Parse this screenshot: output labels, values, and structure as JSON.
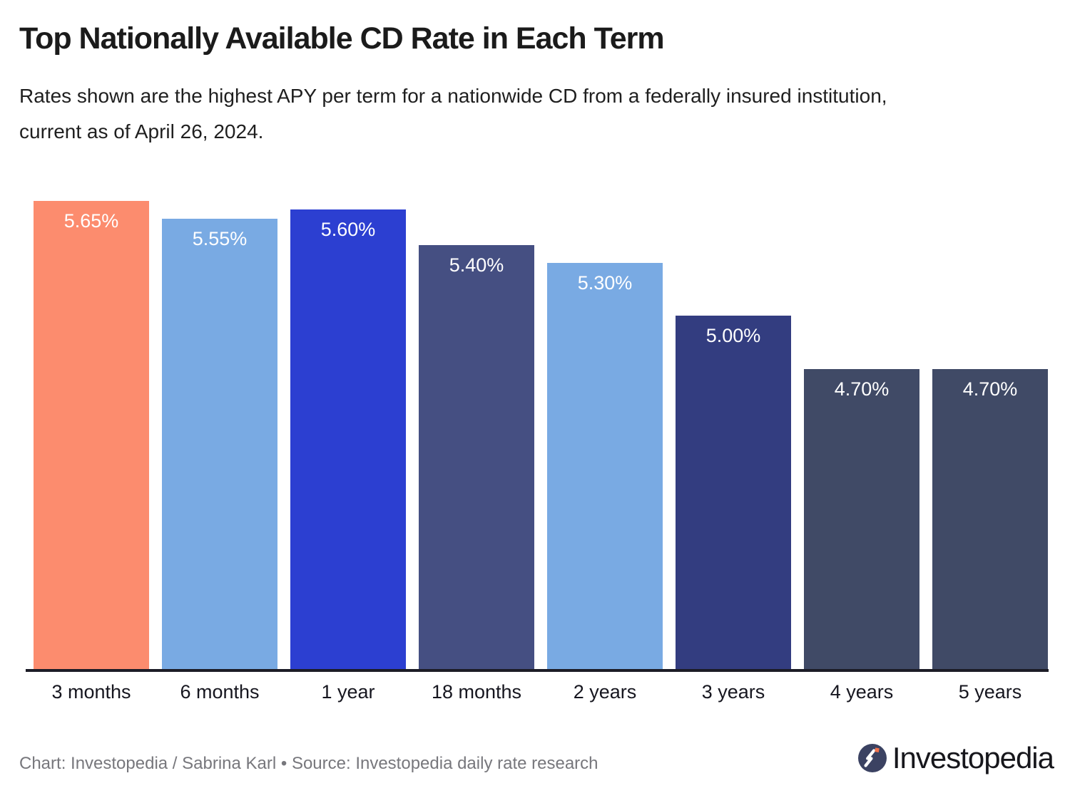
{
  "header": {
    "title": "Top Nationally Available CD Rate in Each Term",
    "subtitle_line1": "Rates shown are the highest APY per term for a nationwide CD from a federally insured institution,",
    "subtitle_line2": "current as of April 26, 2024."
  },
  "chart_data": {
    "type": "bar",
    "title": "Top Nationally Available CD Rate in Each Term",
    "xlabel": "",
    "ylabel": "",
    "categories": [
      "3 months",
      "6 months",
      "1 year",
      "18 months",
      "2 years",
      "3 years",
      "4 years",
      "5 years"
    ],
    "values": [
      5.65,
      5.55,
      5.6,
      5.4,
      5.3,
      5.0,
      4.7,
      4.7
    ],
    "value_labels": [
      "5.65%",
      "5.55%",
      "5.60%",
      "5.40%",
      "5.30%",
      "5.00%",
      "4.70%",
      "4.70%"
    ],
    "bar_colors": [
      "#FC8C6E",
      "#79AAE3",
      "#2C3FD1",
      "#454F82",
      "#79AAE3",
      "#333D80",
      "#404A66",
      "#404A66"
    ],
    "value_label_color": "#FFFFFF",
    "ylim": [
      3.0,
      5.65
    ],
    "grid": false,
    "legend": false,
    "axis_line_color": "#1c1c26"
  },
  "footer": {
    "credit": "Chart: Investopedia / Sabrina Karl • Source: Investopedia daily rate research",
    "brand_name": "Investopedia",
    "brand_icon": "investopedia-circle-bolt-icon",
    "brand_icon_colors": {
      "circle": "#3B4262",
      "bolt": "#FFFFFF",
      "dot": "#F2724C"
    }
  }
}
